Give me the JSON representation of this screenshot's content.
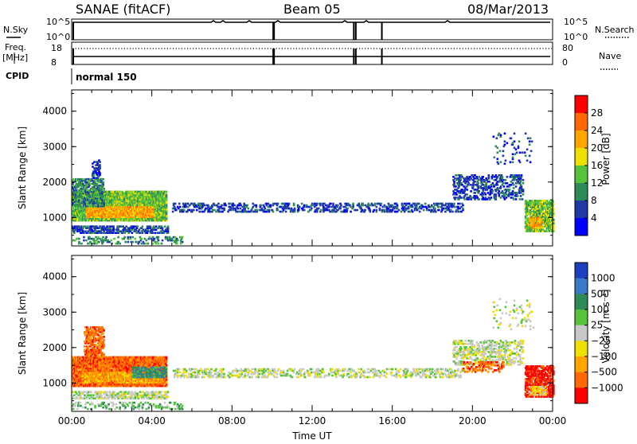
{
  "header": {
    "station": "SANAE (fitACF)",
    "beam": "Beam 05",
    "date": "08/Mar/2013"
  },
  "top_panels": {
    "nsky_label": "N.Sky",
    "nsky_ticks": [
      "10^5",
      "10^0"
    ],
    "nsearch_label": "N.Search",
    "nsearch_ticks": [
      "10^5",
      "10^0"
    ],
    "freq_label": "Freq.",
    "freq_unit": "[MHz]",
    "freq_ticks": [
      "18",
      "8"
    ],
    "nave_label": "Nave",
    "nave_ticks": [
      "80",
      "0"
    ],
    "cpid_label": "CPID",
    "cpid_value": "normal 150"
  },
  "chart_data": [
    {
      "type": "heatmap",
      "panel": "power",
      "ylabel": "Slant Range [km]",
      "yticks": [
        "1000",
        "2000",
        "3000",
        "4000"
      ],
      "ylim": [
        200,
        4600
      ],
      "xlim": [
        0,
        24
      ],
      "colorbar": {
        "label": "Power [dB]",
        "ticks": [
          "4",
          "8",
          "12",
          "16",
          "20",
          "24",
          "28"
        ],
        "colors": [
          "#0000ff",
          "#203aa8",
          "#2e8b57",
          "#55c43c",
          "#f0e000",
          "#ffa500",
          "#ff6a00",
          "#ff0000"
        ]
      },
      "regions": [
        {
          "t0": 0.0,
          "t1": 4.7,
          "r0": 900,
          "r1": 1750,
          "level": 3,
          "density": 0.9
        },
        {
          "t0": 0.7,
          "t1": 4.0,
          "r0": 1000,
          "r1": 1300,
          "level": 5,
          "density": 0.85
        },
        {
          "t0": 0.0,
          "t1": 1.6,
          "r0": 1300,
          "r1": 2100,
          "level": 2,
          "density": 0.55
        },
        {
          "t0": 1.0,
          "t1": 1.4,
          "r0": 2100,
          "r1": 2600,
          "level": 1,
          "density": 0.4
        },
        {
          "t0": 0.0,
          "t1": 4.8,
          "r0": 550,
          "r1": 750,
          "level": 1,
          "density": 0.45
        },
        {
          "t0": 0.0,
          "t1": 5.5,
          "r0": 250,
          "r1": 450,
          "level": 2,
          "density": 0.2
        },
        {
          "t0": 5.0,
          "t1": 19.5,
          "r0": 1150,
          "r1": 1400,
          "level": 1,
          "density": 0.28
        },
        {
          "t0": 19.0,
          "t1": 22.5,
          "r0": 1500,
          "r1": 2200,
          "level": 1,
          "density": 0.3
        },
        {
          "t0": 22.6,
          "t1": 24.0,
          "r0": 600,
          "r1": 1500,
          "level": 3,
          "density": 0.7
        },
        {
          "t0": 22.8,
          "t1": 23.4,
          "r0": 700,
          "r1": 1000,
          "level": 5,
          "density": 0.6
        },
        {
          "t0": 21.0,
          "t1": 23.0,
          "r0": 2500,
          "r1": 3400,
          "level": 1,
          "density": 0.06
        }
      ]
    },
    {
      "type": "heatmap",
      "panel": "velocity",
      "ylabel": "Slant Range [km]",
      "yticks": [
        "1000",
        "2000",
        "3000",
        "4000"
      ],
      "ylim": [
        200,
        4600
      ],
      "xlim": [
        0,
        24
      ],
      "xlabel": "Time UT",
      "xticks": [
        "00:00",
        "04:00",
        "08:00",
        "12:00",
        "16:00",
        "20:00",
        "00:00"
      ],
      "colorbar": {
        "label": "Velocity [m s⁻¹]",
        "ticks": [
          "1000",
          "500",
          "100",
          "25",
          "−25",
          "−100",
          "−500",
          "−1000"
        ],
        "colors": [
          "#1e3fbf",
          "#3a78c8",
          "#2e8b57",
          "#55c43c",
          "#c8c8c8",
          "#f0e000",
          "#ffa500",
          "#ff6a00",
          "#ff0000"
        ]
      },
      "regions": [
        {
          "t0": 0.0,
          "t1": 4.7,
          "r0": 900,
          "r1": 1750,
          "level": 7,
          "density": 0.85
        },
        {
          "t0": 0.5,
          "t1": 4.5,
          "r0": 1000,
          "r1": 1300,
          "level": 6,
          "density": 0.6
        },
        {
          "t0": 0.6,
          "t1": 1.6,
          "r0": 1700,
          "r1": 2600,
          "level": 7,
          "density": 0.5
        },
        {
          "t0": 3.0,
          "t1": 4.7,
          "r0": 1150,
          "r1": 1450,
          "level": 2,
          "density": 0.6
        },
        {
          "t0": 0.0,
          "t1": 4.8,
          "r0": 550,
          "r1": 750,
          "level": 4,
          "density": 0.45
        },
        {
          "t0": 0.0,
          "t1": 5.5,
          "r0": 250,
          "r1": 450,
          "level": 3,
          "density": 0.2
        },
        {
          "t0": 5.0,
          "t1": 19.5,
          "r0": 1150,
          "r1": 1400,
          "level": 4,
          "density": 0.28
        },
        {
          "t0": 19.0,
          "t1": 22.5,
          "r0": 1500,
          "r1": 2200,
          "level": 4,
          "density": 0.3
        },
        {
          "t0": 19.5,
          "t1": 21.5,
          "r0": 1300,
          "r1": 1600,
          "level": 7,
          "density": 0.3
        },
        {
          "t0": 22.6,
          "t1": 24.0,
          "r0": 600,
          "r1": 1500,
          "level": 8,
          "density": 0.6
        },
        {
          "t0": 22.8,
          "t1": 23.6,
          "r0": 650,
          "r1": 900,
          "level": 5,
          "density": 0.6
        },
        {
          "t0": 21.0,
          "t1": 23.0,
          "r0": 2500,
          "r1": 3400,
          "level": 4,
          "density": 0.06
        }
      ]
    }
  ]
}
